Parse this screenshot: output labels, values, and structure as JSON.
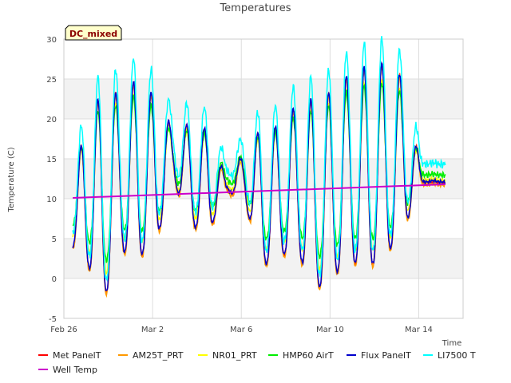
{
  "chart_data": {
    "type": "line",
    "title": "Temperatures",
    "xlabel": "Time",
    "ylabel": "Temperature (C)",
    "badge": "DC_mixed",
    "ylim": [
      -5,
      30
    ],
    "xlim": [
      0,
      22.5
    ],
    "yticks": [
      -5,
      0,
      5,
      10,
      15,
      20,
      25,
      30
    ],
    "xticks": [
      {
        "label": "Feb 26",
        "day": 0
      },
      {
        "label": "Mar 2",
        "day": 5
      },
      {
        "label": "Mar 6",
        "day": 10
      },
      {
        "label": "Mar 10",
        "day": 15
      },
      {
        "label": "Mar 14",
        "day": 20
      }
    ],
    "grid": true,
    "legend_position": "bottom",
    "daily": {
      "x_day_offsets": [
        0.4,
        1.2,
        2.2,
        3.2,
        4.2,
        5.2,
        6.2,
        7.2,
        8.2,
        9.2,
        10.2,
        11.2,
        12.2,
        13.2,
        14.2,
        15.2,
        16.2,
        17.2,
        18.2,
        19.2,
        20.2,
        21.2
      ],
      "minimum": [
        4.0,
        2.5,
        -3.0,
        3.5,
        2.5,
        4.8,
        12.0,
        6.5,
        6.0,
        11.0,
        9.5,
        1.5,
        3.0,
        3.0,
        -1.5,
        0.5,
        2.0,
        1.5,
        3.0,
        6.5,
        12.0,
        12.0
      ],
      "maximum": [
        4.5,
        22.0,
        22.5,
        23.5,
        25.0,
        22.5,
        18.5,
        19.5,
        18.5,
        12.0,
        16.0,
        19.0,
        19.0,
        22.0,
        22.5,
        23.5,
        26.0,
        26.5,
        27.0,
        25.0,
        12.5,
        12.0
      ]
    },
    "series": [
      {
        "name": "Met PanelT",
        "color": "#ff0000",
        "key": "met"
      },
      {
        "name": "AM25T_PRT",
        "color": "#ff9900",
        "key": "am25"
      },
      {
        "name": "NR01_PRT",
        "color": "#ffff00",
        "key": "nr01"
      },
      {
        "name": "HMP60 AirT",
        "color": "#00ee00",
        "key": "hmp"
      },
      {
        "name": "Flux PanelT",
        "color": "#0000cc",
        "key": "flux"
      },
      {
        "name": "LI7500 T",
        "color": "#00ffff",
        "key": "li"
      },
      {
        "name": "Well Temp",
        "color": "#cc00cc",
        "key": "well",
        "x_days": [
          0.5,
          21.5
        ],
        "values": [
          10.1,
          11.8
        ]
      }
    ]
  }
}
